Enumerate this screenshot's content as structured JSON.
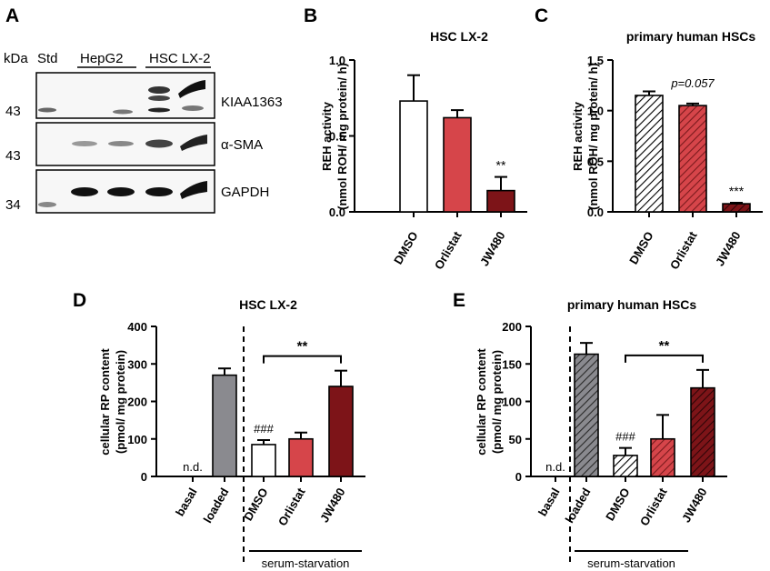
{
  "colors": {
    "white": "#ffffff",
    "gray": "#8a8a8f",
    "red": "#d6454a",
    "darkred": "#7d1418",
    "hatch": "#000000"
  },
  "blot": {
    "letter": "A",
    "header_kda": "kDa",
    "header_std": "Std",
    "header_hepg2": "HepG2",
    "header_hsc": "HSC LX-2",
    "rows": [
      {
        "label": "KIAA1363",
        "kda": "43"
      },
      {
        "label": "α-SMA",
        "kda": "43"
      },
      {
        "label": "GAPDH",
        "kda": "34"
      }
    ]
  },
  "chart_data": [
    {
      "panel": "B",
      "type": "bar",
      "title": "HSC LX-2",
      "ylabel_lines": [
        "REH activity",
        "(nmol ROH/ mg protein/ h)"
      ],
      "ylim": [
        0,
        1.0
      ],
      "yticks": [
        "0.0",
        "0.5",
        "1.0"
      ],
      "categories": [
        "DMSO",
        "Orlistat",
        "JW480"
      ],
      "values": [
        0.73,
        0.62,
        0.14
      ],
      "errors": [
        0.17,
        0.05,
        0.09
      ],
      "fills": [
        "white",
        "red",
        "darkred"
      ],
      "hatched": [
        false,
        false,
        false
      ],
      "annotations": [
        "",
        "",
        "**"
      ]
    },
    {
      "panel": "C",
      "type": "bar",
      "title": "primary human HSCs",
      "ylabel_lines": [
        "REH activity",
        "(nmol ROH/ mg protein/ h)"
      ],
      "ylim": [
        0,
        1.5
      ],
      "yticks": [
        "0.0",
        "0.5",
        "1.0",
        "1.5"
      ],
      "categories": [
        "DMSO",
        "Orlistat",
        "JW480"
      ],
      "values": [
        1.15,
        1.05,
        0.08
      ],
      "errors": [
        0.04,
        0.02,
        0.01
      ],
      "fills": [
        "white",
        "red",
        "darkred"
      ],
      "hatched": [
        true,
        true,
        true
      ],
      "annotations": [
        "",
        "p=0.057",
        "***"
      ]
    },
    {
      "panel": "D",
      "type": "bar",
      "title": "HSC LX-2",
      "ylabel_lines": [
        "cellular RP content",
        "(pmol/ mg protein)"
      ],
      "ylim": [
        0,
        400
      ],
      "yticks": [
        "0",
        "100",
        "200",
        "300",
        "400"
      ],
      "categories": [
        "basal",
        "loaded",
        "DMSO",
        "Orlistat",
        "JW480"
      ],
      "values": [
        null,
        270,
        85,
        100,
        240
      ],
      "errors": [
        0,
        18,
        12,
        17,
        42
      ],
      "fills": [
        "white",
        "gray",
        "white",
        "red",
        "darkred"
      ],
      "hatched": [
        false,
        false,
        false,
        false,
        false
      ],
      "value_labels": [
        "n.d.",
        "",
        "###",
        "",
        ""
      ],
      "bracket": "**",
      "group_label": "serum-starvation"
    },
    {
      "panel": "E",
      "type": "bar",
      "title": "primary human HSCs",
      "ylabel_lines": [
        "cellular RP content",
        "(pmol/ mg protein)"
      ],
      "ylim": [
        0,
        200
      ],
      "yticks": [
        "0",
        "50",
        "100",
        "150",
        "200"
      ],
      "categories": [
        "basal",
        "loaded",
        "DMSO",
        "Orlistat",
        "JW480"
      ],
      "values": [
        null,
        163,
        28,
        50,
        118
      ],
      "errors": [
        0,
        15,
        10,
        32,
        24
      ],
      "fills": [
        "white",
        "gray",
        "white",
        "red",
        "darkred"
      ],
      "hatched": [
        false,
        true,
        true,
        true,
        true
      ],
      "value_labels": [
        "n.d.",
        "",
        "###",
        "",
        ""
      ],
      "bracket": "**",
      "group_label": "serum-starvation"
    }
  ]
}
